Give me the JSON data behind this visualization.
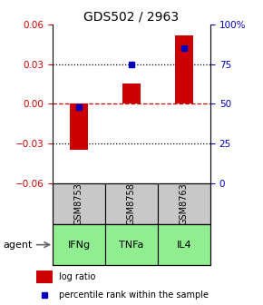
{
  "title": "GDS502 / 2963",
  "samples": [
    "GSM8753",
    "GSM8758",
    "GSM8763"
  ],
  "agents": [
    "IFNg",
    "TNFa",
    "IL4"
  ],
  "log_ratios": [
    -0.035,
    0.015,
    0.052
  ],
  "percentile_ranks": [
    48,
    75,
    85
  ],
  "ylim_left": [
    -0.06,
    0.06
  ],
  "ylim_right": [
    0,
    100
  ],
  "yticks_left": [
    -0.06,
    -0.03,
    0.0,
    0.03,
    0.06
  ],
  "yticks_right": [
    0,
    25,
    50,
    75,
    100
  ],
  "bar_color": "#cc0000",
  "dot_color": "#0000bb",
  "zero_line_color": "#cc0000",
  "sample_box_color": "#c8c8c8",
  "agent_box_color": "#90EE90",
  "title_fontsize": 10,
  "tick_fontsize": 7.5,
  "label_fontsize": 8,
  "legend_fontsize": 7,
  "left_tick_color": "#cc0000",
  "right_tick_color": "#0000bb"
}
